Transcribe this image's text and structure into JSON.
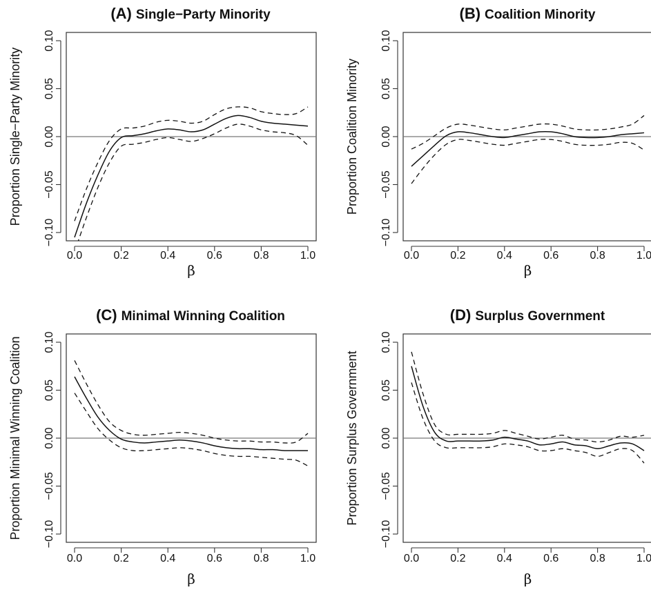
{
  "chart_data": [
    {
      "type": "line",
      "panel_letter": "(A)",
      "title": "Single−Party Minority",
      "xlabel": "β",
      "ylabel": "Proportion Single−Party Minority",
      "xlim": [
        0,
        1
      ],
      "ylim": [
        -0.1,
        0.1
      ],
      "x_ticks": [
        "0.0",
        "0.2",
        "0.4",
        "0.6",
        "0.8",
        "1.0"
      ],
      "y_ticks": [
        "−0.10",
        "−0.05",
        "0.00",
        "0.05",
        "0.10"
      ],
      "reference_line_y": 0,
      "x": [
        0.0,
        0.05,
        0.1,
        0.15,
        0.2,
        0.25,
        0.3,
        0.35,
        0.4,
        0.45,
        0.5,
        0.55,
        0.6,
        0.65,
        0.7,
        0.75,
        0.8,
        0.85,
        0.9,
        0.95,
        1.0
      ],
      "series": [
        {
          "role": "estimate",
          "values": [
            -0.105,
            -0.07,
            -0.04,
            -0.015,
            -0.001,
            0.001,
            0.003,
            0.006,
            0.008,
            0.007,
            0.005,
            0.007,
            0.013,
            0.019,
            0.022,
            0.02,
            0.016,
            0.014,
            0.013,
            0.012,
            0.011
          ]
        },
        {
          "role": "upper",
          "values": [
            -0.088,
            -0.055,
            -0.027,
            -0.004,
            0.008,
            0.009,
            0.011,
            0.015,
            0.017,
            0.016,
            0.014,
            0.016,
            0.023,
            0.029,
            0.031,
            0.03,
            0.026,
            0.024,
            0.023,
            0.024,
            0.031
          ]
        },
        {
          "role": "lower",
          "values": [
            -0.12,
            -0.085,
            -0.053,
            -0.027,
            -0.01,
            -0.008,
            -0.006,
            -0.003,
            -0.001,
            -0.003,
            -0.005,
            -0.002,
            0.003,
            0.009,
            0.013,
            0.011,
            0.007,
            0.005,
            0.004,
            0.001,
            -0.009
          ]
        }
      ]
    },
    {
      "type": "line",
      "panel_letter": "(B)",
      "title": "Coalition Minority",
      "xlabel": "β",
      "ylabel": "Proportion Coalition Minority",
      "xlim": [
        0,
        1
      ],
      "ylim": [
        -0.1,
        0.1
      ],
      "x_ticks": [
        "0.0",
        "0.2",
        "0.4",
        "0.6",
        "0.8",
        "1.0"
      ],
      "y_ticks": [
        "−0.10",
        "−0.05",
        "0.00",
        "0.05",
        "0.10"
      ],
      "reference_line_y": 0,
      "x": [
        0.0,
        0.05,
        0.1,
        0.15,
        0.2,
        0.25,
        0.3,
        0.35,
        0.4,
        0.45,
        0.5,
        0.55,
        0.6,
        0.65,
        0.7,
        0.75,
        0.8,
        0.85,
        0.9,
        0.95,
        1.0
      ],
      "series": [
        {
          "role": "estimate",
          "values": [
            -0.031,
            -0.02,
            -0.009,
            0.001,
            0.005,
            0.004,
            0.002,
            0.0,
            -0.001,
            0.001,
            0.003,
            0.005,
            0.005,
            0.003,
            0.0,
            -0.001,
            -0.001,
            0.0,
            0.002,
            0.003,
            0.004
          ]
        },
        {
          "role": "upper",
          "values": [
            -0.013,
            -0.007,
            0.001,
            0.009,
            0.013,
            0.012,
            0.01,
            0.008,
            0.007,
            0.009,
            0.011,
            0.013,
            0.013,
            0.011,
            0.008,
            0.007,
            0.007,
            0.008,
            0.01,
            0.013,
            0.022
          ]
        },
        {
          "role": "lower",
          "values": [
            -0.049,
            -0.033,
            -0.019,
            -0.008,
            -0.003,
            -0.004,
            -0.006,
            -0.008,
            -0.009,
            -0.007,
            -0.005,
            -0.003,
            -0.003,
            -0.005,
            -0.008,
            -0.009,
            -0.009,
            -0.008,
            -0.006,
            -0.007,
            -0.014
          ]
        }
      ]
    },
    {
      "type": "line",
      "panel_letter": "(C)",
      "title": "Minimal Winning Coalition",
      "xlabel": "β",
      "ylabel": "Proportion Minimal Winning Coalition",
      "xlim": [
        0,
        1
      ],
      "ylim": [
        -0.1,
        0.1
      ],
      "x_ticks": [
        "0.0",
        "0.2",
        "0.4",
        "0.6",
        "0.8",
        "1.0"
      ],
      "y_ticks": [
        "−0.10",
        "−0.05",
        "0.00",
        "0.05",
        "0.10"
      ],
      "reference_line_y": 0,
      "x": [
        0.0,
        0.05,
        0.1,
        0.15,
        0.2,
        0.25,
        0.3,
        0.35,
        0.4,
        0.45,
        0.5,
        0.55,
        0.6,
        0.65,
        0.7,
        0.75,
        0.8,
        0.85,
        0.9,
        0.95,
        1.0
      ],
      "series": [
        {
          "role": "estimate",
          "values": [
            0.064,
            0.042,
            0.022,
            0.008,
            -0.001,
            -0.004,
            -0.005,
            -0.004,
            -0.003,
            -0.002,
            -0.003,
            -0.005,
            -0.008,
            -0.01,
            -0.011,
            -0.011,
            -0.012,
            -0.012,
            -0.013,
            -0.013,
            -0.013
          ]
        },
        {
          "role": "upper",
          "values": [
            0.081,
            0.057,
            0.035,
            0.017,
            0.008,
            0.004,
            0.003,
            0.004,
            0.005,
            0.006,
            0.005,
            0.003,
            0.0,
            -0.002,
            -0.003,
            -0.003,
            -0.004,
            -0.004,
            -0.005,
            -0.004,
            0.005
          ]
        },
        {
          "role": "lower",
          "values": [
            0.047,
            0.028,
            0.01,
            -0.002,
            -0.01,
            -0.013,
            -0.013,
            -0.012,
            -0.011,
            -0.01,
            -0.011,
            -0.013,
            -0.016,
            -0.018,
            -0.019,
            -0.019,
            -0.02,
            -0.021,
            -0.022,
            -0.023,
            -0.029
          ]
        }
      ]
    },
    {
      "type": "line",
      "panel_letter": "(D)",
      "title": "Surplus Government",
      "xlabel": "β",
      "ylabel": "Proportion Surplus Government",
      "xlim": [
        0,
        1
      ],
      "ylim": [
        -0.1,
        0.1
      ],
      "x_ticks": [
        "0.0",
        "0.2",
        "0.4",
        "0.6",
        "0.8",
        "1.0"
      ],
      "y_ticks": [
        "−0.10",
        "−0.05",
        "0.00",
        "0.05",
        "0.10"
      ],
      "reference_line_y": 0,
      "x": [
        0.0,
        0.05,
        0.1,
        0.15,
        0.2,
        0.25,
        0.3,
        0.35,
        0.4,
        0.45,
        0.5,
        0.55,
        0.6,
        0.65,
        0.7,
        0.75,
        0.8,
        0.85,
        0.9,
        0.95,
        1.0
      ],
      "series": [
        {
          "role": "estimate",
          "values": [
            0.075,
            0.033,
            0.006,
            -0.003,
            -0.003,
            -0.003,
            -0.003,
            -0.002,
            0.001,
            -0.001,
            -0.003,
            -0.007,
            -0.006,
            -0.004,
            -0.007,
            -0.008,
            -0.011,
            -0.008,
            -0.005,
            -0.006,
            -0.013
          ]
        },
        {
          "role": "upper",
          "values": [
            0.09,
            0.046,
            0.014,
            0.004,
            0.004,
            0.004,
            0.004,
            0.005,
            0.008,
            0.005,
            0.002,
            -0.001,
            0.001,
            0.003,
            -0.001,
            -0.002,
            -0.004,
            -0.002,
            0.002,
            0.001,
            0.003
          ]
        },
        {
          "role": "lower",
          "values": [
            0.058,
            0.02,
            -0.003,
            -0.01,
            -0.01,
            -0.01,
            -0.01,
            -0.009,
            -0.006,
            -0.007,
            -0.009,
            -0.013,
            -0.013,
            -0.011,
            -0.013,
            -0.015,
            -0.019,
            -0.015,
            -0.011,
            -0.013,
            -0.026
          ]
        }
      ]
    }
  ]
}
